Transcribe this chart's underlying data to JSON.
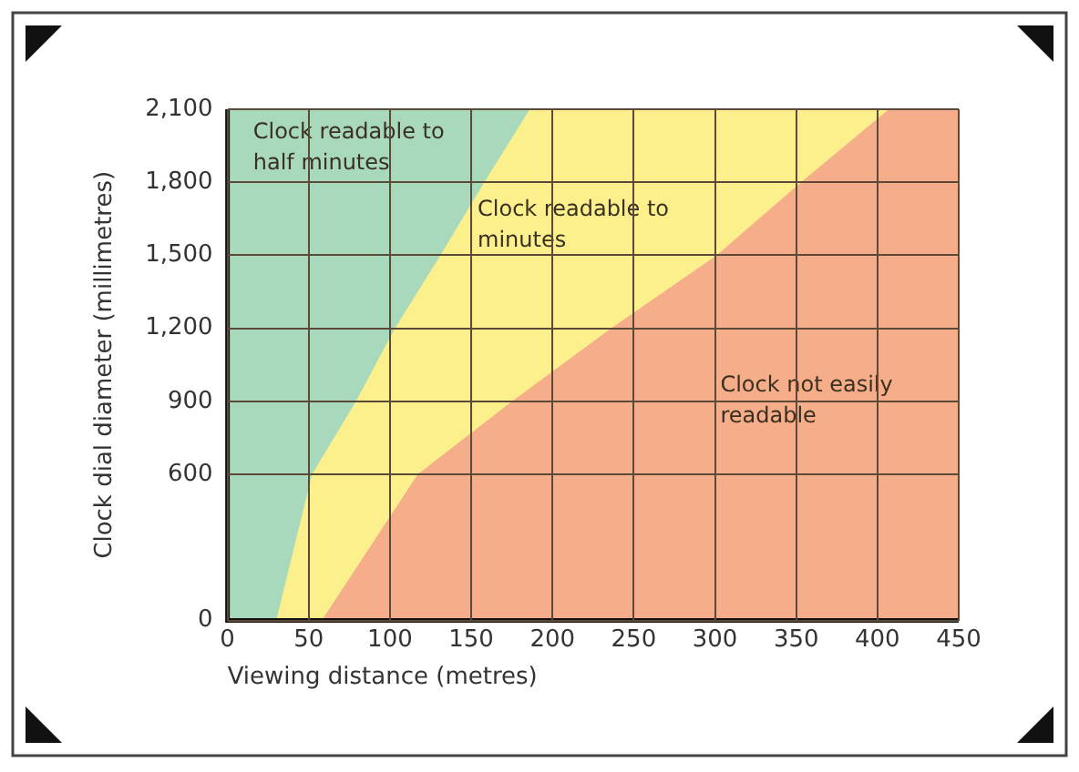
{
  "chart_data": {
    "type": "area",
    "xlabel": "Viewing distance (metres)",
    "ylabel": "Clock dial diameter (millimetres)",
    "xlim": [
      0,
      450
    ],
    "xticks": [
      0,
      50,
      100,
      150,
      200,
      250,
      300,
      350,
      400,
      450
    ],
    "ylim": [
      0,
      2100
    ],
    "yticks": [
      0,
      600,
      900,
      {
        "value": 1200,
        "label": "1,200"
      },
      {
        "value": 1500,
        "label": "1,500"
      },
      {
        "value": 1800,
        "label": "1,800"
      },
      {
        "value": 2100,
        "label": "2,100"
      }
    ],
    "grid": true,
    "legend": false,
    "series": [
      {
        "color": "#a8d9bd",
        "x": [
          0,
          450
        ],
        "values": [
          2100,
          2100
        ]
      },
      {
        "color": "#fbf08c",
        "x": [
          30,
          52,
          79,
          103,
          131,
          158,
          186,
          450
        ],
        "values": [
          0,
          600,
          900,
          1200,
          1500,
          1800,
          2100,
          2100
        ]
      },
      {
        "color": "#f5ad8a",
        "x": [
          58,
          117,
          175,
          236,
          301,
          353,
          407,
          450
        ],
        "values": [
          0,
          600,
          900,
          1200,
          1500,
          1800,
          2100,
          2100
        ]
      }
    ],
    "annotations": [
      "Clock readable to half minutes",
      "Clock readable to minutes",
      "Clock not easily readable"
    ]
  }
}
